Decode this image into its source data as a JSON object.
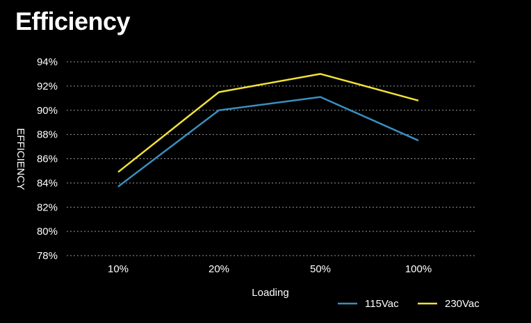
{
  "chart_data": {
    "type": "line",
    "title": "Efficiency",
    "xlabel": "Loading",
    "ylabel": "EFFICIENCY",
    "categories": [
      "10%",
      "20%",
      "50%",
      "100%"
    ],
    "y_ticks": [
      "78%",
      "80%",
      "82%",
      "84%",
      "86%",
      "88%",
      "90%",
      "92%",
      "94%"
    ],
    "ylim": [
      78,
      94
    ],
    "grid": true,
    "legend_position": "bottom-right",
    "series": [
      {
        "name": "115Vac",
        "color": "#3a8fc0",
        "values": [
          83.7,
          90.0,
          91.1,
          87.5
        ]
      },
      {
        "name": "230Vac",
        "color": "#f2e03a",
        "values": [
          84.9,
          91.5,
          93.0,
          90.8
        ]
      }
    ]
  }
}
